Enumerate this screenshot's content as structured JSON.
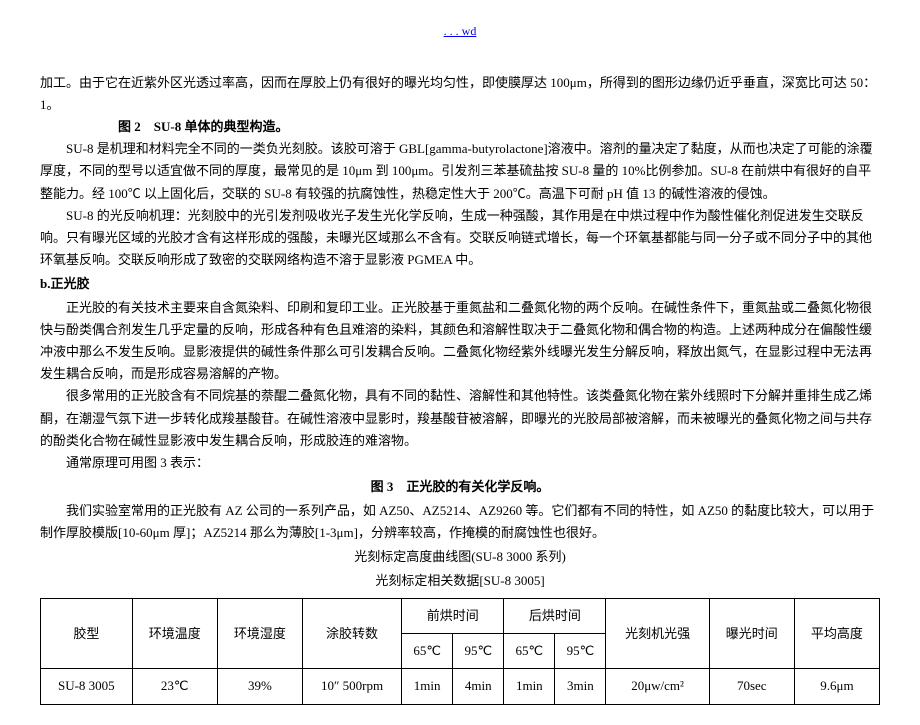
{
  "header": {
    "link_text": ". . . wd"
  },
  "body": {
    "p1": "加工。由于它在近紫外区光透过率高，因而在厚胶上仍有很好的曝光均匀性，即使膜厚达 100μm，所得到的图形边缘仍近乎垂直，深宽比可达 50：1。",
    "fig2": "图 2　SU-8 单体的典型构造。",
    "p2": "SU-8 是机理和材料完全不同的一类负光刻胶。该胶可溶于 GBL[gamma-butyrolactone]溶液中。溶剂的量决定了黏度，从而也决定了可能的涂覆厚度，不同的型号以适宜做不同的厚度，最常见的是 10μm 到 100μm。引发剂三苯基硫盐按 SU-8 量的 10%比例参加。SU-8 在前烘中有很好的自平整能力。经 100℃ 以上固化后，交联的 SU-8 有较强的抗腐蚀性，热稳定性大于 200℃。高温下可耐 pH 值 13 的碱性溶液的侵蚀。",
    "p3": "SU-8 的光反响机理：光刻胶中的光引发剂吸收光子发生光化学反响，生成一种强酸，其作用是在中烘过程中作为酸性催化剂促进发生交联反响。只有曝光区域的光胶才含有这样形成的强酸，未曝光区域那么不含有。交联反响链式增长，每一个环氧基都能与同一分子或不同分子中的其他环氧基反响。交联反响形成了致密的交联网络构造不溶于显影液 PGMEA 中。",
    "section_b": "b.正光胶",
    "p4": "正光胶的有关技术主要来自含氮染料、印刷和复印工业。正光胶基于重氮盐和二叠氮化物的两个反响。在碱性条件下，重氮盐或二叠氮化物很快与酚类偶合剂发生几乎定量的反响，形成各种有色且难溶的染料，其颜色和溶解性取决于二叠氮化物和偶合物的构造。上述两种成分在偏酸性缓冲液中那么不发生反响。显影液提供的碱性条件那么可引发耦合反响。二叠氮化物经紫外线曝光发生分解反响，释放出氮气，在显影过程中无法再发生耦合反响，而是形成容易溶解的产物。",
    "p5": "很多常用的正光胶含有不同烷基的萘醌二叠氮化物，具有不同的黏性、溶解性和其他特性。该类叠氮化物在紫外线照时下分解并重排生成乙烯酮，在潮湿气氛下进一步转化成羧基酸苷。在碱性溶液中显影时，羧基酸苷被溶解，即曝光的光胶局部被溶解，而未被曝光的叠氮化物之间与共存的酚类化合物在碱性显影液中发生耦合反响，形成胶连的难溶物。",
    "p6": "通常原理可用图 3 表示：",
    "fig3": "图 3　正光胶的有关化学反响。",
    "p7": "我们实验室常用的正光胶有 AZ 公司的一系列产品，如 AZ50、AZ5214、AZ9260 等。它们都有不同的特性，如 AZ50 的黏度比较大，可以用于制作厚胶模版[10-60μm 厚]；AZ5214 那么为薄胶[1-3μm]，分辨率较高，作掩模的耐腐蚀性也很好。",
    "sub1": "光刻标定高度曲线图(SU-8 3000 系列)",
    "sub2": "光刻标定相关数据[SU-8 3005]"
  },
  "table": {
    "headers": {
      "col1": "胶型",
      "col2": "环境温度",
      "col3": "环境湿度",
      "col4": "涂胶转数",
      "col5": "前烘时间",
      "col6": "后烘时间",
      "col7": "光刻机光强",
      "col8": "曝光时间",
      "col9": "平均高度",
      "sub65": "65℃",
      "sub95": "95℃"
    },
    "row": {
      "c1": "SU-8 3005",
      "c2": "23℃",
      "c3": "39%",
      "c4": "10″ 500rpm",
      "c5": "1min",
      "c6": "4min",
      "c7": "1min",
      "c8": "3min",
      "c9": "20μw/cm²",
      "c10": "70sec",
      "c11": "9.6μm"
    }
  }
}
